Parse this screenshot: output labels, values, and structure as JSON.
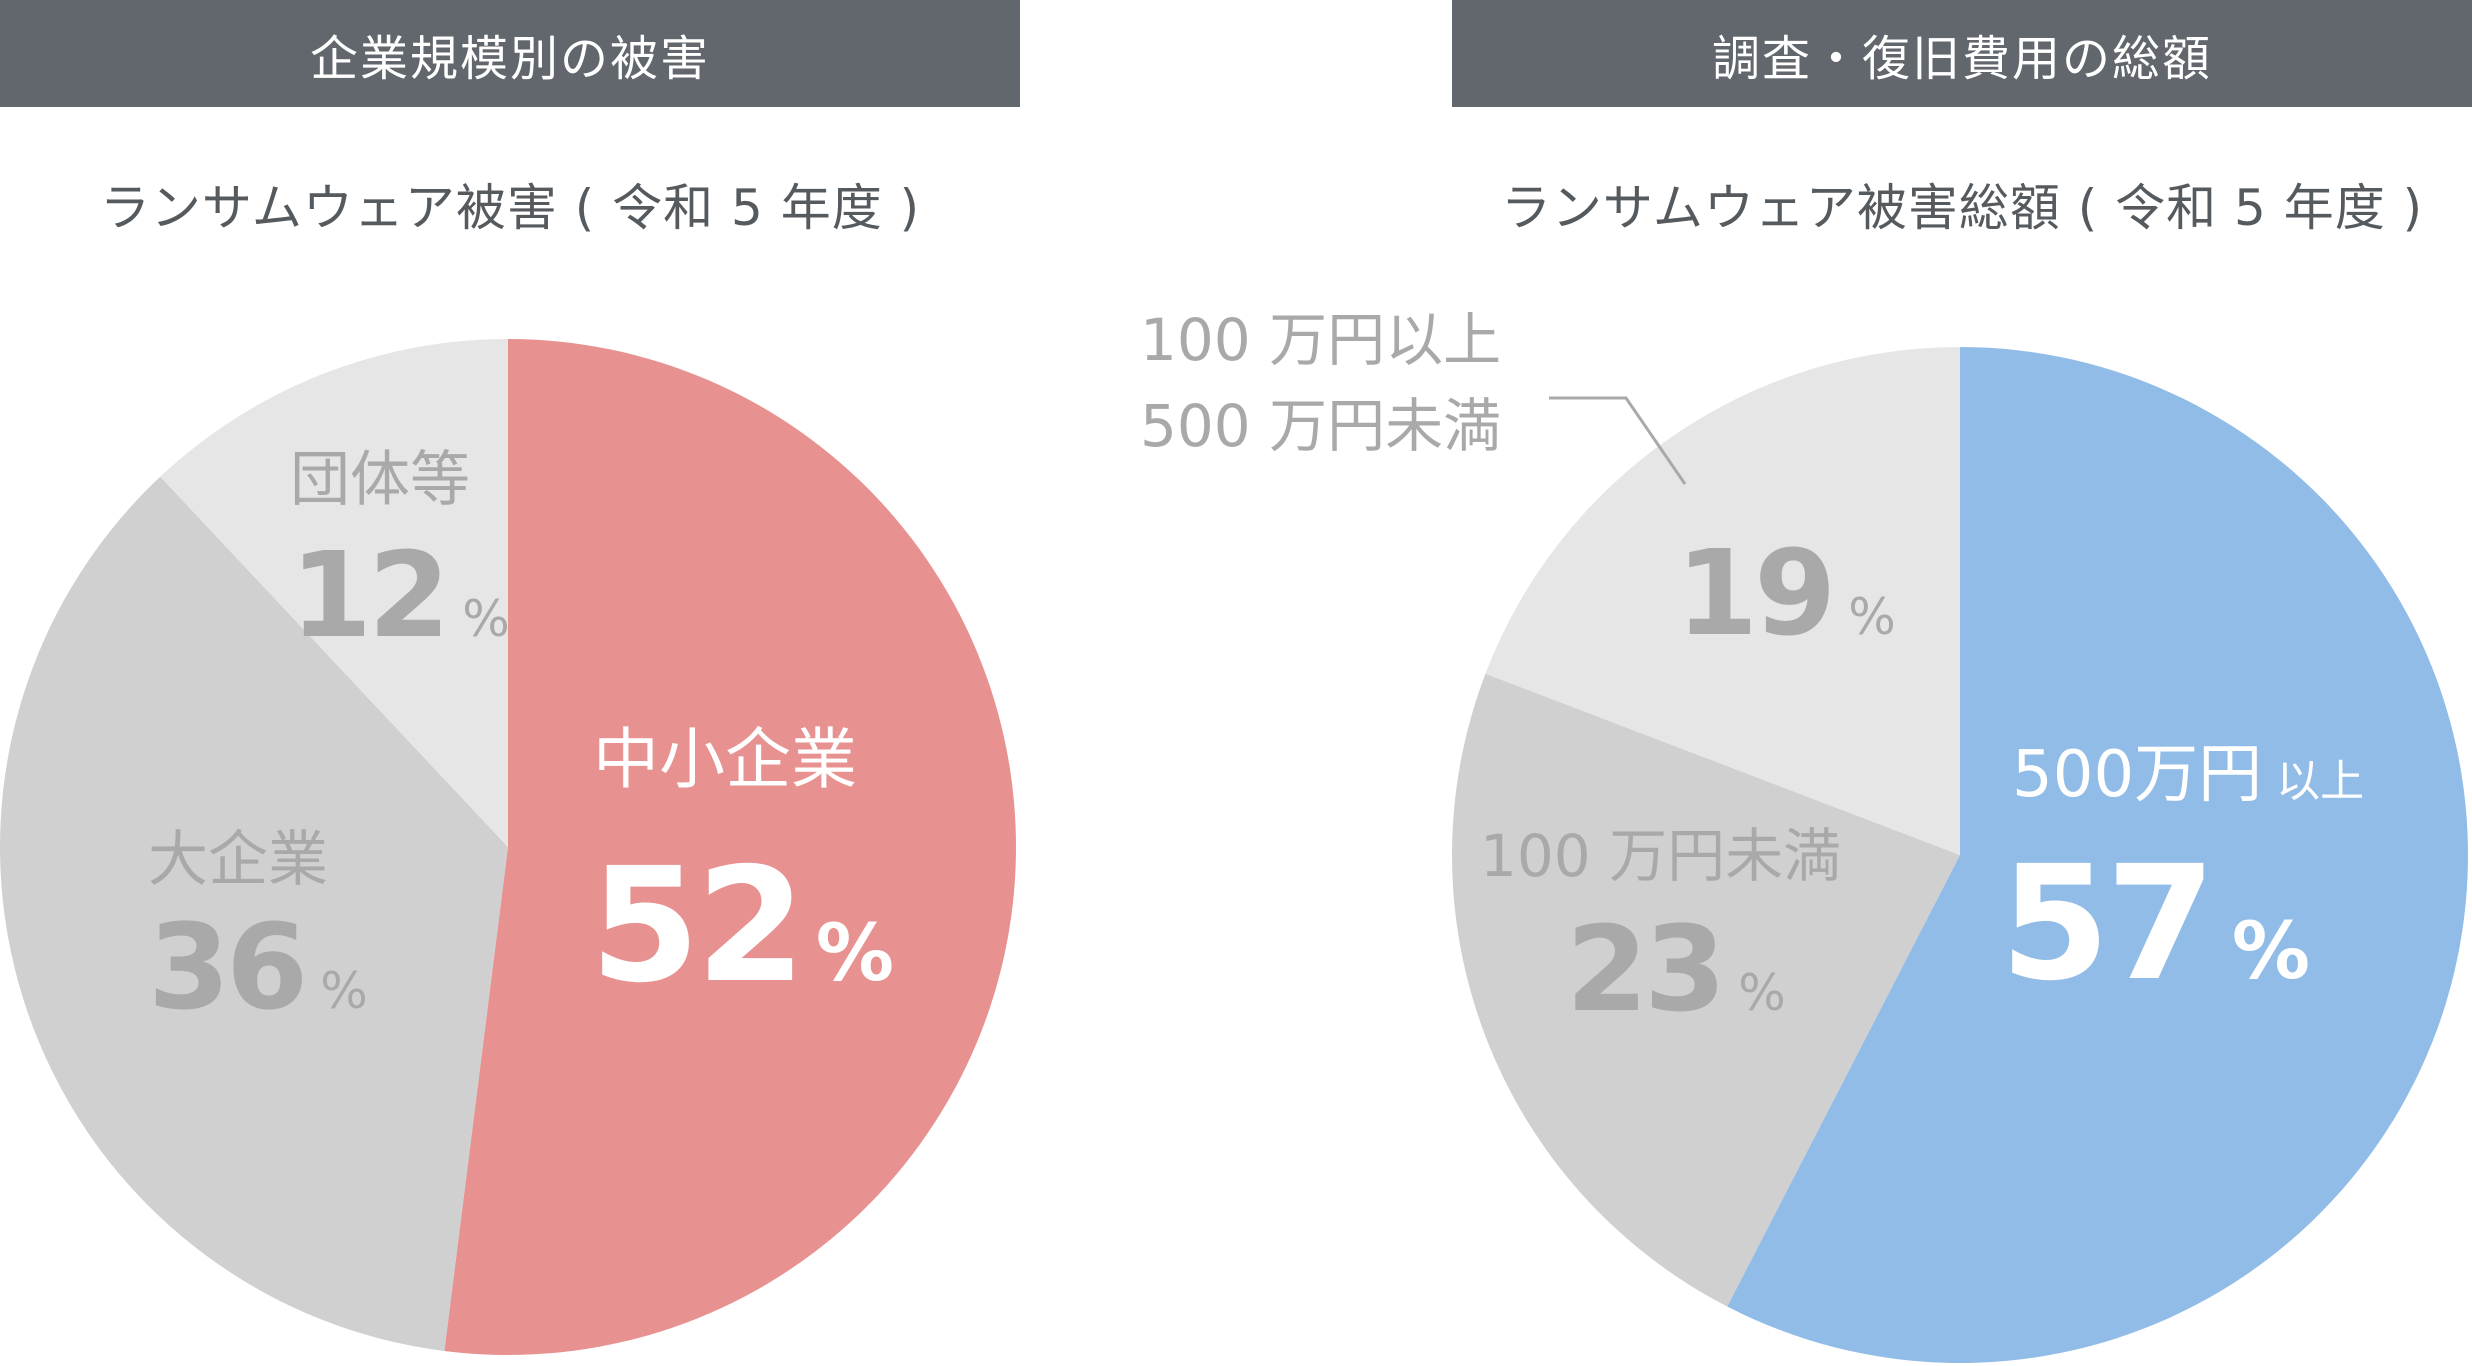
{
  "chart_data": [
    {
      "type": "pie",
      "header": "企業規模別の被害",
      "title": "ランサムウェア被害 ( 令和 5 年度 )",
      "unit": "%",
      "slices": [
        {
          "label": "中小企業",
          "value": 52,
          "color": "#e89191"
        },
        {
          "label": "大企業",
          "value": 36,
          "color": "#d0d0d0"
        },
        {
          "label": "団体等",
          "value": 12,
          "color": "#e6e6e6"
        }
      ]
    },
    {
      "type": "pie",
      "header": "調査・復旧費用の総額",
      "title": "ランサムウェア被害総額 ( 令和 5 年度 )",
      "unit": "%",
      "slices": [
        {
          "label_main": "500万円",
          "label_suffix": "以上",
          "value": 57,
          "color": "#92bce8"
        },
        {
          "label": "100 万円未満",
          "value": 23,
          "color": "#d0d0d0"
        },
        {
          "label_line1": "100 万円以上",
          "label_line2": "500 万円未満",
          "value": 19,
          "color": "#e6e6e6"
        }
      ]
    }
  ]
}
